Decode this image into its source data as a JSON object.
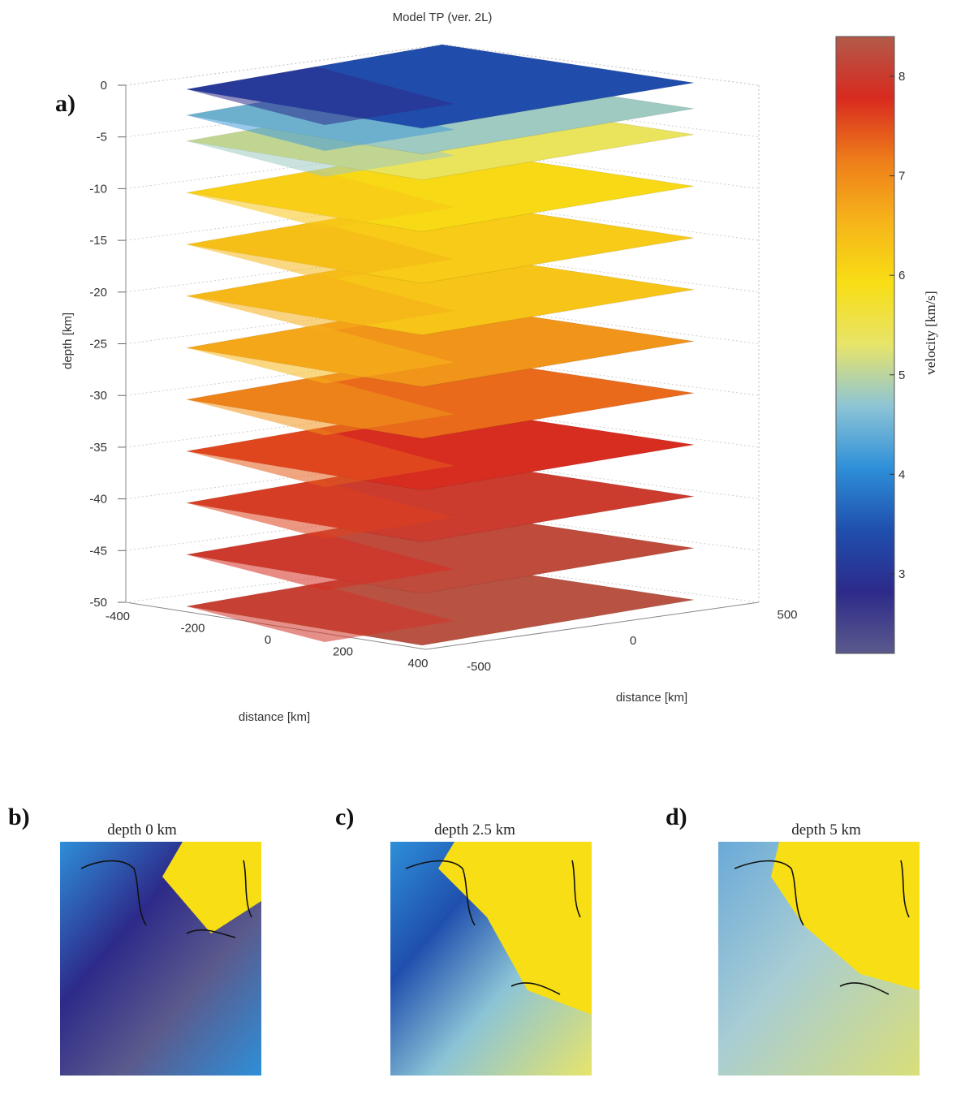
{
  "chart_data": [
    {
      "id": "a",
      "type": "heatmap",
      "panel_label": "a)",
      "title": "Model TP (ver. 2L)",
      "zlabel": "depth [km]",
      "xlabel": "distance [km]",
      "ylabel": "distance [km]",
      "zticks": [
        "0",
        "-5",
        "-10",
        "-15",
        "-20",
        "-25",
        "-30",
        "-35",
        "-40",
        "-45",
        "-50"
      ],
      "xticks": [
        "-400",
        "-200",
        "0",
        "200",
        "400"
      ],
      "yticks": [
        "-500",
        "0",
        "500"
      ],
      "zlim": [
        -50,
        0
      ],
      "xlim": [
        -400,
        400
      ],
      "ylim": [
        -500,
        500
      ],
      "slice_depths": [
        0,
        -2.5,
        -5,
        -10,
        -15,
        -20,
        -25,
        -30,
        -35,
        -40,
        -45,
        -50
      ],
      "slice_mean_velocity": [
        3.4,
        4.8,
        5.4,
        6.0,
        6.2,
        6.3,
        6.9,
        7.3,
        7.8,
        8.0,
        8.2,
        8.3
      ],
      "colorbar": {
        "label": "velocity [km/s]",
        "ticks": [
          "3",
          "4",
          "5",
          "6",
          "7",
          "8"
        ],
        "range": [
          2.2,
          8.4
        ],
        "colors": [
          "#5b5a8c",
          "#2d2a8a",
          "#1f4fae",
          "#2e8fd8",
          "#8cc4d6",
          "#e7e46a",
          "#f8de15",
          "#f6b41a",
          "#ee7d1a",
          "#d82a1f",
          "#b25a4a"
        ]
      }
    },
    {
      "id": "b",
      "type": "heatmap",
      "panel_label": "b)",
      "title": "depth 0 km",
      "depth_km": 0
    },
    {
      "id": "c",
      "type": "heatmap",
      "panel_label": "c)",
      "title": "depth 2.5 km",
      "depth_km": 2.5
    },
    {
      "id": "d",
      "type": "heatmap",
      "panel_label": "d)",
      "title": "depth 5 km",
      "depth_km": 5
    }
  ]
}
